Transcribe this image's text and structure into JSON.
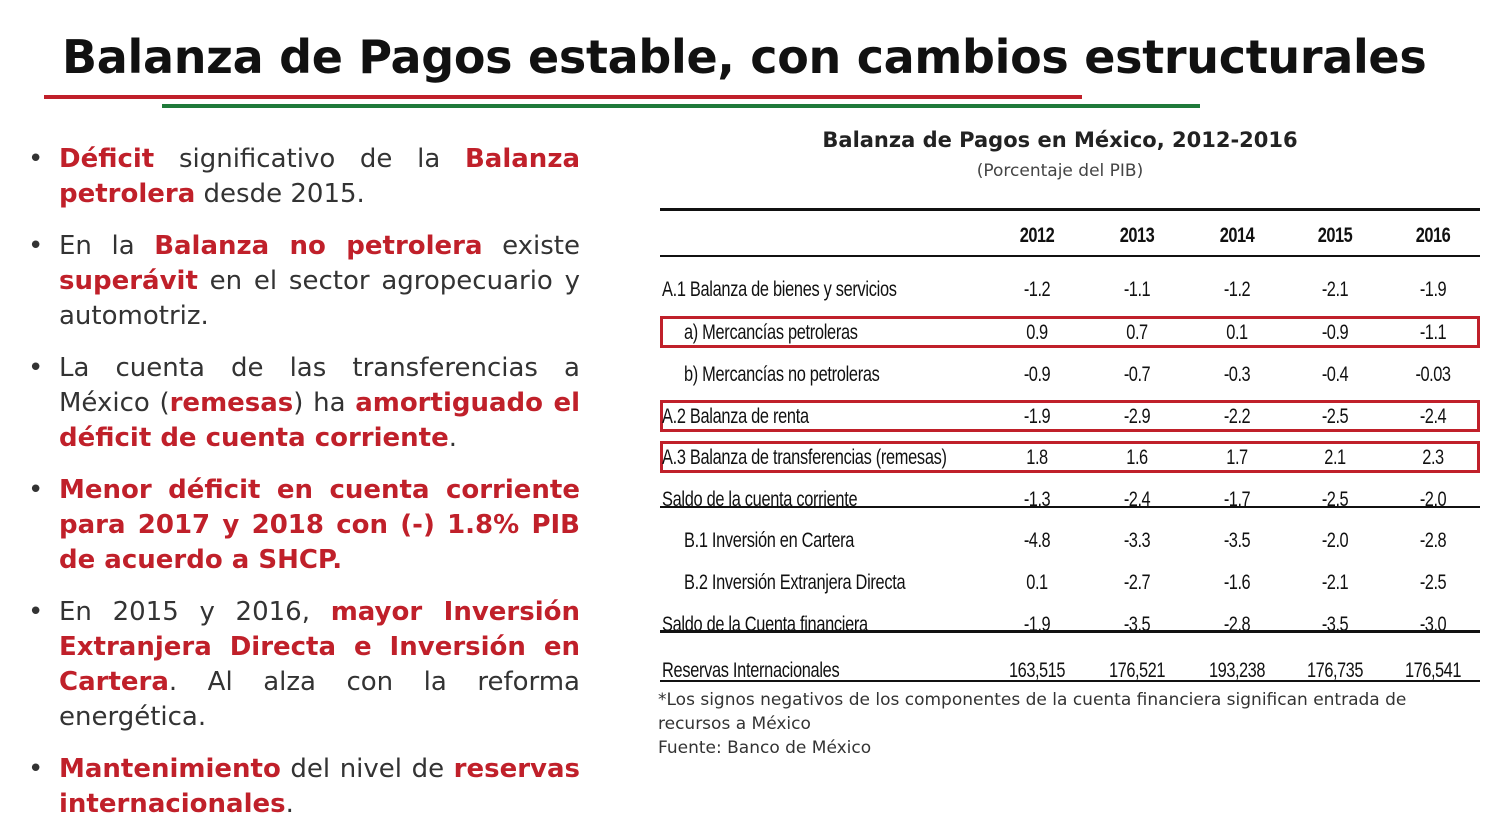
{
  "slide_title": "Balanza de Pagos estable, con cambios estructurales",
  "colors": {
    "accent_red": "#c0202a",
    "accent_green": "#1f7a3a"
  },
  "bullets": [
    {
      "segments": [
        {
          "text": "Déficit",
          "em": true
        },
        {
          "text": " significativo de la ",
          "em": false
        },
        {
          "text": "Balanza petrolera",
          "em": true
        },
        {
          "text": " desde 2015.",
          "em": false
        }
      ]
    },
    {
      "segments": [
        {
          "text": "En la ",
          "em": false
        },
        {
          "text": "Balanza no petrolera",
          "em": true
        },
        {
          "text": " existe ",
          "em": false
        },
        {
          "text": "superávit",
          "em": true
        },
        {
          "text": " en el sector agropecuario y automotriz.",
          "em": false
        }
      ]
    },
    {
      "segments": [
        {
          "text": "La cuenta de las transferencias a México (",
          "em": false
        },
        {
          "text": "remesas",
          "em": true
        },
        {
          "text": ") ha ",
          "em": false
        },
        {
          "text": "amortiguado el déficit de cuenta corriente",
          "em": true
        },
        {
          "text": ".",
          "em": false
        }
      ]
    },
    {
      "segments": [
        {
          "text": "Menor déficit en cuenta corriente para 2017 y 2018 con (-) 1.8% PIB de acuerdo a SHCP.",
          "em": true
        }
      ]
    },
    {
      "segments": [
        {
          "text": "En 2015 y 2016, ",
          "em": false
        },
        {
          "text": "mayor Inversión Extranjera Directa e Inversión en Cartera",
          "em": true
        },
        {
          "text": ". Al alza con la reforma energética.",
          "em": false
        }
      ]
    },
    {
      "segments": [
        {
          "text": "Mantenimiento",
          "em": true
        },
        {
          "text": " del nivel de ",
          "em": false
        },
        {
          "text": "reservas internacionales",
          "em": true
        },
        {
          "text": ".",
          "em": false
        }
      ]
    }
  ],
  "table": {
    "title": "Balanza de Pagos en México, 2012-2016",
    "subtitle": "(Porcentaje del PIB)",
    "years": [
      "2012",
      "2013",
      "2014",
      "2015",
      "2016"
    ],
    "rows": [
      {
        "label": "A.1 Balanza de bienes y servicios",
        "values": [
          "-1.2",
          "-1.1",
          "-1.2",
          "-2.1",
          "-1.9"
        ],
        "indent": 0,
        "highlight": false
      },
      {
        "label": "a) Mercancías petroleras",
        "values": [
          "0.9",
          "0.7",
          "0.1",
          "-0.9",
          "-1.1"
        ],
        "indent": 1,
        "highlight": true
      },
      {
        "label": "b) Mercancías no petroleras",
        "values": [
          "-0.9",
          "-0.7",
          "-0.3",
          "-0.4",
          "-0.03"
        ],
        "indent": 1,
        "highlight": false
      },
      {
        "label": "A.2 Balanza de renta",
        "values": [
          "-1.9",
          "-2.9",
          "-2.2",
          "-2.5",
          "-2.4"
        ],
        "indent": 0,
        "highlight": true
      },
      {
        "label": "A.3 Balanza de transferencias (remesas)",
        "values": [
          "1.8",
          "1.6",
          "1.7",
          "2.1",
          "2.3"
        ],
        "indent": 0,
        "highlight": true
      },
      {
        "label": "Saldo de la cuenta corriente",
        "values": [
          "-1.3",
          "-2.4",
          "-1.7",
          "-2.5",
          "-2.0"
        ],
        "indent": 0,
        "highlight": false
      },
      {
        "label": "B.1 Inversión en Cartera",
        "values": [
          "-4.8",
          "-3.3",
          "-3.5",
          "-2.0",
          "-2.8"
        ],
        "indent": 1,
        "highlight": false
      },
      {
        "label": "B.2 Inversión Extranjera Directa",
        "values": [
          "0.1",
          "-2.7",
          "-1.6",
          "-2.1",
          "-2.5"
        ],
        "indent": 1,
        "highlight": false
      },
      {
        "label": "Saldo de la Cuenta financiera",
        "values": [
          "-1.9",
          "-3.5",
          "-2.8",
          "-3.5",
          "-3.0"
        ],
        "indent": 0,
        "highlight": false
      },
      {
        "label": "Reservas Internacionales",
        "values": [
          "163,515",
          "176,521",
          "193,238",
          "176,735",
          "176,541"
        ],
        "indent": 0,
        "highlight": false
      }
    ]
  },
  "footnote": "*Los signos negativos de los componentes de la cuenta financiera significan entrada de recursos a México",
  "source": "Fuente: Banco de México"
}
